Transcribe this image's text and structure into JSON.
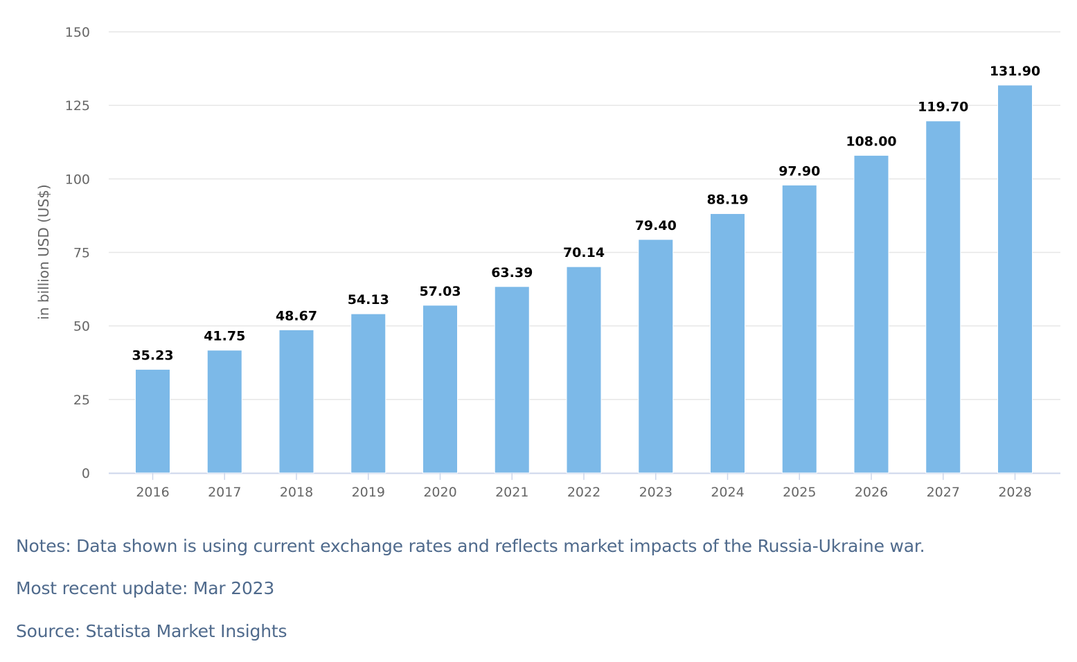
{
  "chart_data": {
    "type": "bar",
    "categories": [
      "2016",
      "2017",
      "2018",
      "2019",
      "2020",
      "2021",
      "2022",
      "2023",
      "2024",
      "2025",
      "2026",
      "2027",
      "2028"
    ],
    "values": [
      35.23,
      41.75,
      48.67,
      54.13,
      57.03,
      63.39,
      70.14,
      79.4,
      88.19,
      97.9,
      108.0,
      119.7,
      131.9
    ],
    "data_labels": [
      "35.23",
      "41.75",
      "48.67",
      "54.13",
      "57.03",
      "63.39",
      "70.14",
      "79.40",
      "88.19",
      "97.90",
      "108.00",
      "119.70",
      "131.90"
    ],
    "ylabel": "in billion USD (US$)",
    "xlabel": "",
    "ylim": [
      0,
      150
    ],
    "yticks": [
      "0",
      "25",
      "50",
      "75",
      "100",
      "125",
      "150"
    ],
    "grid": true,
    "bar_color": "#7cb9e8"
  },
  "notes": {
    "note": "Notes: Data shown is using current exchange rates and reflects market impacts of the Russia-Ukraine war.",
    "update": "Most recent update: Mar 2023",
    "source": "Source: Statista Market Insights"
  }
}
